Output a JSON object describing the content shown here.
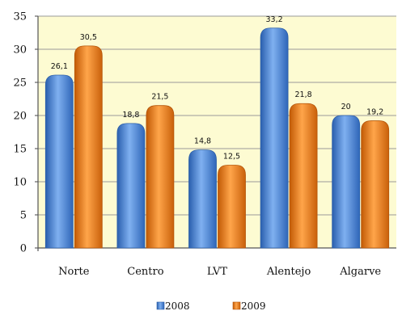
{
  "chart_data": {
    "type": "bar",
    "categories": [
      "Norte",
      "Centro",
      "LVT",
      "Alentejo",
      "Algarve"
    ],
    "series": [
      {
        "name": "2008",
        "values": [
          26.1,
          18.8,
          14.8,
          33.2,
          20
        ],
        "labels": [
          "26,1",
          "18,8",
          "14,8",
          "33,2",
          "20"
        ],
        "color": "#4a86d8"
      },
      {
        "name": "2009",
        "values": [
          30.5,
          21.5,
          12.5,
          21.8,
          19.2
        ],
        "labels": [
          "30,5",
          "21,5",
          "12,5",
          "21,8",
          "19,2"
        ],
        "color": "#f07a12"
      }
    ],
    "ylim": [
      0,
      35
    ],
    "yticks": [
      0,
      5,
      10,
      15,
      20,
      25,
      30,
      35
    ],
    "grid": true,
    "legend_position": "bottom",
    "plot_background": "#fdfbd2",
    "title": "",
    "xlabel": "",
    "ylabel": ""
  }
}
